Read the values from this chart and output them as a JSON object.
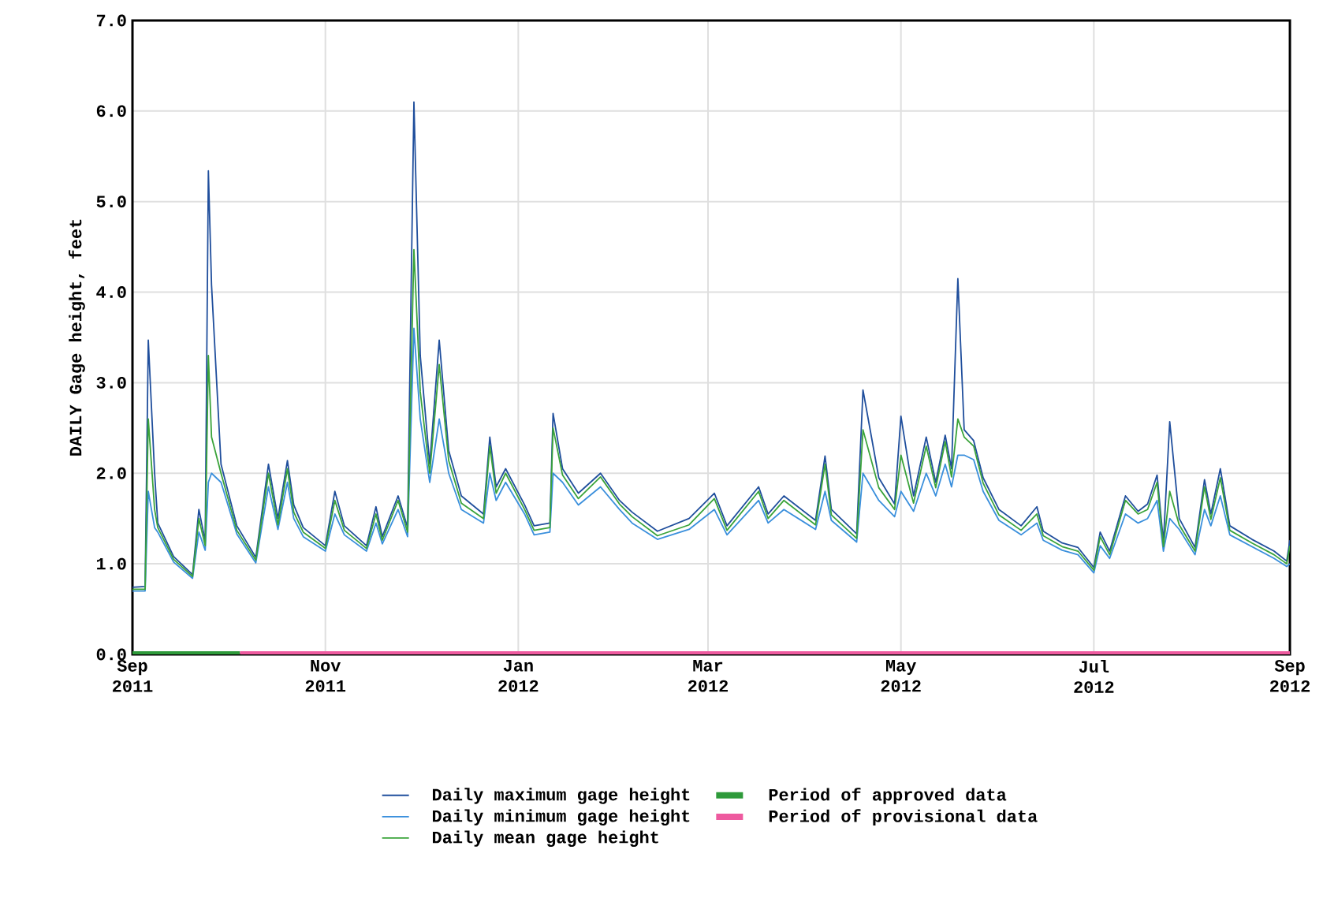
{
  "chart_data": {
    "type": "line",
    "ylabel": "DAILY Gage height, feet",
    "x": [
      "2011-09-01",
      "2011-09-05",
      "2011-09-06",
      "2011-09-08",
      "2011-09-09",
      "2011-09-14",
      "2011-09-20",
      "2011-09-22",
      "2011-09-24",
      "2011-09-25",
      "2011-09-26",
      "2011-09-29",
      "2011-10-04",
      "2011-10-10",
      "2011-10-14",
      "2011-10-17",
      "2011-10-20",
      "2011-10-22",
      "2011-10-25",
      "2011-11-01",
      "2011-11-04",
      "2011-11-07",
      "2011-11-14",
      "2011-11-17",
      "2011-11-19",
      "2011-11-24",
      "2011-11-27",
      "2011-11-29",
      "2011-12-01",
      "2011-12-04",
      "2011-12-07",
      "2011-12-10",
      "2011-12-14",
      "2011-12-21",
      "2011-12-23",
      "2011-12-25",
      "2011-12-28",
      "2012-01-03",
      "2012-01-06",
      "2012-01-11",
      "2012-01-12",
      "2012-01-15",
      "2012-01-20",
      "2012-01-27",
      "2012-02-02",
      "2012-02-06",
      "2012-02-14",
      "2012-02-24",
      "2012-03-03",
      "2012-03-07",
      "2012-03-17",
      "2012-03-20",
      "2012-03-25",
      "2012-04-04",
      "2012-04-07",
      "2012-04-09",
      "2012-04-17",
      "2012-04-19",
      "2012-04-24",
      "2012-04-29",
      "2012-05-01",
      "2012-05-05",
      "2012-05-09",
      "2012-05-12",
      "2012-05-15",
      "2012-05-17",
      "2012-05-19",
      "2012-05-21",
      "2012-05-24",
      "2012-05-27",
      "2012-06-01",
      "2012-06-08",
      "2012-06-13",
      "2012-06-15",
      "2012-06-21",
      "2012-06-26",
      "2012-07-01",
      "2012-07-03",
      "2012-07-06",
      "2012-07-11",
      "2012-07-15",
      "2012-07-18",
      "2012-07-21",
      "2012-07-23",
      "2012-07-25",
      "2012-07-28",
      "2012-08-02",
      "2012-08-05",
      "2012-08-07",
      "2012-08-10",
      "2012-08-13",
      "2012-08-20",
      "2012-08-27",
      "2012-08-31",
      "2012-09-01"
    ],
    "series": [
      {
        "name": "Daily maximum gage height",
        "color": "#1f4e9c",
        "values": [
          0.74,
          0.75,
          3.47,
          2.0,
          1.45,
          1.08,
          0.88,
          1.6,
          1.25,
          5.34,
          4.08,
          2.1,
          1.42,
          1.07,
          2.1,
          1.5,
          2.14,
          1.65,
          1.4,
          1.2,
          1.8,
          1.42,
          1.2,
          1.63,
          1.3,
          1.75,
          1.4,
          6.1,
          3.3,
          2.1,
          3.47,
          2.25,
          1.75,
          1.55,
          2.4,
          1.85,
          2.05,
          1.65,
          1.42,
          1.45,
          2.66,
          2.05,
          1.78,
          2.0,
          1.7,
          1.57,
          1.36,
          1.5,
          1.78,
          1.42,
          1.85,
          1.55,
          1.75,
          1.48,
          2.19,
          1.6,
          1.33,
          2.92,
          1.95,
          1.66,
          2.63,
          1.75,
          2.4,
          1.9,
          2.42,
          2.05,
          4.15,
          2.48,
          2.36,
          1.95,
          1.6,
          1.42,
          1.63,
          1.36,
          1.23,
          1.18,
          0.96,
          1.35,
          1.14,
          1.75,
          1.58,
          1.66,
          1.98,
          1.24,
          2.57,
          1.5,
          1.18,
          1.93,
          1.55,
          2.05,
          1.42,
          1.27,
          1.14,
          1.03,
          1.26
        ]
      },
      {
        "name": "Daily minimum gage height",
        "color": "#3a8fdc",
        "values": [
          0.7,
          0.7,
          1.8,
          1.4,
          1.35,
          1.02,
          0.84,
          1.35,
          1.15,
          1.9,
          2.0,
          1.9,
          1.33,
          1.01,
          1.85,
          1.38,
          1.9,
          1.5,
          1.3,
          1.14,
          1.55,
          1.32,
          1.14,
          1.45,
          1.22,
          1.6,
          1.3,
          3.6,
          2.6,
          1.9,
          2.6,
          2.0,
          1.6,
          1.45,
          2.0,
          1.7,
          1.9,
          1.55,
          1.32,
          1.35,
          2.0,
          1.9,
          1.65,
          1.85,
          1.6,
          1.45,
          1.27,
          1.38,
          1.6,
          1.32,
          1.7,
          1.45,
          1.6,
          1.38,
          1.8,
          1.48,
          1.24,
          2.0,
          1.7,
          1.52,
          1.8,
          1.58,
          2.0,
          1.75,
          2.1,
          1.85,
          2.2,
          2.2,
          2.15,
          1.8,
          1.48,
          1.32,
          1.45,
          1.26,
          1.15,
          1.1,
          0.9,
          1.2,
          1.06,
          1.55,
          1.45,
          1.5,
          1.7,
          1.14,
          1.5,
          1.38,
          1.1,
          1.6,
          1.42,
          1.75,
          1.32,
          1.19,
          1.06,
          0.97,
          1.0
        ]
      },
      {
        "name": "Daily mean gage height",
        "color": "#3aa33a",
        "values": [
          0.72,
          0.72,
          2.6,
          1.6,
          1.4,
          1.05,
          0.86,
          1.5,
          1.2,
          3.3,
          2.4,
          2.0,
          1.37,
          1.04,
          2.0,
          1.43,
          2.05,
          1.57,
          1.35,
          1.17,
          1.7,
          1.37,
          1.17,
          1.55,
          1.26,
          1.7,
          1.35,
          4.47,
          2.9,
          2.0,
          3.2,
          2.14,
          1.67,
          1.5,
          2.3,
          1.78,
          2.0,
          1.6,
          1.37,
          1.4,
          2.5,
          1.98,
          1.72,
          1.96,
          1.66,
          1.52,
          1.31,
          1.43,
          1.72,
          1.37,
          1.8,
          1.5,
          1.7,
          1.43,
          2.1,
          1.54,
          1.28,
          2.48,
          1.84,
          1.6,
          2.2,
          1.67,
          2.3,
          1.84,
          2.35,
          1.96,
          2.6,
          2.4,
          2.3,
          1.89,
          1.54,
          1.37,
          1.55,
          1.31,
          1.19,
          1.14,
          0.93,
          1.3,
          1.1,
          1.7,
          1.55,
          1.6,
          1.9,
          1.19,
          1.8,
          1.43,
          1.14,
          1.85,
          1.49,
          1.95,
          1.37,
          1.23,
          1.1,
          1.0,
          1.2
        ]
      },
      {
        "name": "Period of approved data",
        "color": "#2e9a3a",
        "x": [
          "2011-09-01",
          "2011-10-05"
        ],
        "values": [
          0,
          0
        ]
      },
      {
        "name": "Period of provisional data",
        "color": "#ee5a9f",
        "x": [
          "2011-10-05",
          "2012-09-01"
        ],
        "values": [
          0,
          0
        ]
      }
    ],
    "xlim": [
      "2011-09-01",
      "2012-09-01"
    ],
    "xticks": [
      {
        "value": "2011-09-01",
        "label": "Sep 2011"
      },
      {
        "value": "2011-11-01",
        "label": "Nov 2011"
      },
      {
        "value": "2012-01-01",
        "label": "Jan 2012"
      },
      {
        "value": "2012-03-01",
        "label": "Mar 2012"
      },
      {
        "value": "2012-05-01",
        "label": "May 2012"
      },
      {
        "value": "2012-07-01",
        "label": "Jul 2012"
      },
      {
        "value": "2012-09-01",
        "label": "Sep 2012"
      }
    ],
    "ylim": [
      0,
      7
    ],
    "yticks": [
      {
        "value": 0,
        "label": "0.0"
      },
      {
        "value": 1,
        "label": "1.0"
      },
      {
        "value": 2,
        "label": "2.0"
      },
      {
        "value": 3,
        "label": "3.0"
      },
      {
        "value": 4,
        "label": "4.0"
      },
      {
        "value": 5,
        "label": "5.0"
      },
      {
        "value": 6,
        "label": "6.0"
      },
      {
        "value": 7,
        "label": "7.0"
      }
    ],
    "grid": true,
    "legend": "bottom",
    "marker": "none",
    "line_style": "solid"
  }
}
